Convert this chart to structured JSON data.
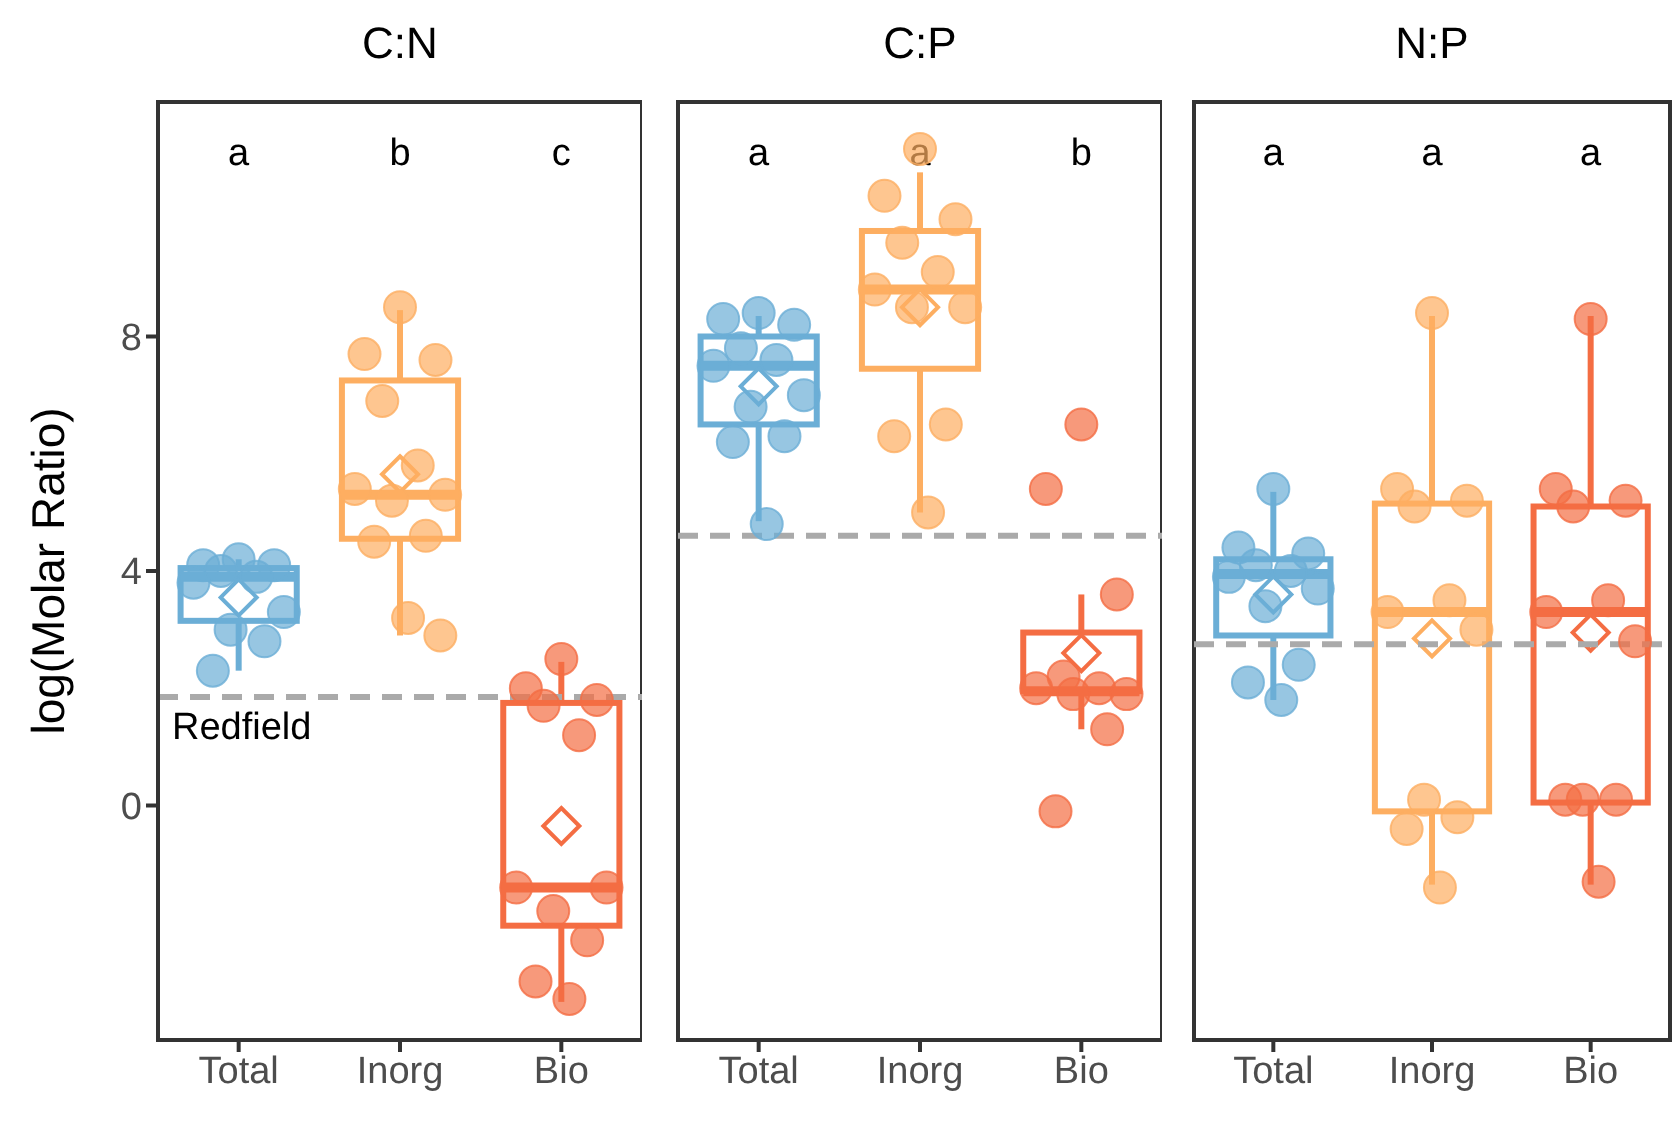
{
  "chart_data": [
    {
      "type": "box",
      "title": "C:N",
      "ylabel": "log(Molar Ratio)",
      "categories": [
        "Total",
        "Inorg",
        "Bio"
      ],
      "ylim": [
        -4,
        12
      ],
      "yticks": [
        0,
        4,
        8
      ],
      "marker": "circle",
      "series": [
        {
          "type": "box",
          "colors": [
            "#6baed6",
            "#fdae61",
            "#f46d43"
          ],
          "boxes": [
            {
              "low": 2.3,
              "q1": 3.15,
              "median": 3.9,
              "q3": 4.05,
              "high": 4.2,
              "mean": 3.55
            },
            {
              "low": 2.9,
              "q1": 4.55,
              "median": 5.3,
              "q3": 7.25,
              "high": 8.45,
              "mean": 5.65
            },
            {
              "low": -3.35,
              "q1": -2.05,
              "median": -1.4,
              "q3": 1.75,
              "high": 2.45,
              "mean": -0.35
            }
          ]
        },
        {
          "type": "scatter",
          "color": "#6baed6",
          "x": [
            "Total",
            "Total",
            "Total",
            "Total",
            "Total",
            "Total",
            "Total",
            "Total",
            "Total",
            "Total"
          ],
          "values": [
            4.2,
            4.1,
            4.1,
            4.0,
            3.9,
            3.8,
            3.3,
            3.0,
            2.8,
            2.3
          ]
        },
        {
          "type": "scatter",
          "color": "#fdae61",
          "x": [
            "Inorg",
            "Inorg",
            "Inorg",
            "Inorg",
            "Inorg",
            "Inorg",
            "Inorg",
            "Inorg",
            "Inorg",
            "Inorg",
            "Inorg",
            "Inorg"
          ],
          "values": [
            8.5,
            7.7,
            7.6,
            6.9,
            5.8,
            5.4,
            5.3,
            5.2,
            4.6,
            4.5,
            3.2,
            2.9
          ]
        },
        {
          "type": "scatter",
          "color": "#f46d43",
          "x": [
            "Bio",
            "Bio",
            "Bio",
            "Bio",
            "Bio",
            "Bio",
            "Bio",
            "Bio",
            "Bio",
            "Bio",
            "Bio"
          ],
          "values": [
            2.5,
            2.0,
            1.8,
            1.7,
            1.2,
            -1.4,
            -1.4,
            -1.8,
            -2.3,
            -3.0,
            -3.3
          ]
        }
      ],
      "ref_lines": [
        {
          "axis": "y",
          "value": 1.85,
          "label": "Redfield",
          "color": "#aaaaaa",
          "line_style": "dashed"
        }
      ],
      "annotations": [
        "a",
        "b",
        "c"
      ]
    },
    {
      "type": "box",
      "title": "C:P",
      "categories": [
        "Total",
        "Inorg",
        "Bio"
      ],
      "ylim": [
        -4,
        12
      ],
      "yticks": [
        0,
        4,
        8
      ],
      "tick_labels": "x",
      "marker": "circle",
      "series": [
        {
          "type": "box",
          "colors": [
            "#6baed6",
            "#fdae61",
            "#f46d43"
          ],
          "boxes": [
            {
              "low": 4.85,
              "q1": 6.5,
              "median": 7.5,
              "q3": 8.0,
              "high": 8.35,
              "mean": 7.15
            },
            {
              "low": 5.0,
              "q1": 7.45,
              "median": 8.8,
              "q3": 9.8,
              "high": 10.8,
              "mean": 8.5
            },
            {
              "low": 1.3,
              "q1": 1.95,
              "median": 1.95,
              "q3": 2.95,
              "high": 3.6,
              "mean": 2.6
            }
          ]
        },
        {
          "type": "scatter",
          "color": "#6baed6",
          "x": [
            "Total",
            "Total",
            "Total",
            "Total",
            "Total",
            "Total",
            "Total",
            "Total",
            "Total",
            "Total",
            "Total"
          ],
          "values": [
            8.4,
            8.3,
            8.2,
            7.8,
            7.6,
            7.5,
            7.0,
            6.8,
            6.3,
            6.2,
            4.8
          ]
        },
        {
          "type": "scatter",
          "color": "#fdae61",
          "x": [
            "Inorg",
            "Inorg",
            "Inorg",
            "Inorg",
            "Inorg",
            "Inorg",
            "Inorg",
            "Inorg",
            "Inorg",
            "Inorg",
            "Inorg"
          ],
          "values": [
            11.2,
            10.4,
            10.0,
            9.6,
            9.1,
            8.8,
            8.5,
            8.5,
            6.5,
            6.3,
            5.0
          ]
        },
        {
          "type": "scatter",
          "color": "#f46d43",
          "x": [
            "Bio",
            "Bio",
            "Bio",
            "Bio",
            "Bio",
            "Bio",
            "Bio",
            "Bio",
            "Bio",
            "Bio"
          ],
          "values": [
            6.5,
            5.4,
            3.6,
            2.2,
            2.0,
            2.0,
            1.9,
            1.9,
            1.3,
            -0.1
          ]
        }
      ],
      "ref_lines": [
        {
          "axis": "y",
          "value": 4.6,
          "color": "#aaaaaa",
          "line_style": "dashed"
        }
      ],
      "annotations": [
        "a",
        "a",
        "b"
      ]
    },
    {
      "type": "box",
      "title": "N:P",
      "categories": [
        "Total",
        "Inorg",
        "Bio"
      ],
      "ylim": [
        -4,
        12
      ],
      "yticks": [
        0,
        4,
        8
      ],
      "tick_labels": "x",
      "marker": "circle",
      "series": [
        {
          "type": "box",
          "colors": [
            "#6baed6",
            "#fdae61",
            "#f46d43"
          ],
          "boxes": [
            {
              "low": 1.8,
              "q1": 2.9,
              "median": 3.95,
              "q3": 4.2,
              "high": 5.35,
              "mean": 3.6
            },
            {
              "low": -1.35,
              "q1": -0.1,
              "median": 3.3,
              "q3": 5.15,
              "high": 8.35,
              "mean": 2.85
            },
            {
              "low": -1.35,
              "q1": 0.05,
              "median": 3.3,
              "q3": 5.1,
              "high": 8.35,
              "mean": 2.95
            }
          ]
        },
        {
          "type": "scatter",
          "color": "#6baed6",
          "x": [
            "Total",
            "Total",
            "Total",
            "Total",
            "Total",
            "Total",
            "Total",
            "Total",
            "Total",
            "Total",
            "Total"
          ],
          "values": [
            5.4,
            4.4,
            4.3,
            4.1,
            4.0,
            3.9,
            3.7,
            3.4,
            2.4,
            2.1,
            1.8
          ]
        },
        {
          "type": "scatter",
          "color": "#fdae61",
          "x": [
            "Inorg",
            "Inorg",
            "Inorg",
            "Inorg",
            "Inorg",
            "Inorg",
            "Inorg",
            "Inorg",
            "Inorg",
            "Inorg",
            "Inorg"
          ],
          "values": [
            8.4,
            5.4,
            5.2,
            5.1,
            3.5,
            3.3,
            3.0,
            0.1,
            -0.2,
            -0.4,
            -1.4
          ]
        },
        {
          "type": "scatter",
          "color": "#f46d43",
          "x": [
            "Bio",
            "Bio",
            "Bio",
            "Bio",
            "Bio",
            "Bio",
            "Bio",
            "Bio",
            "Bio",
            "Bio",
            "Bio"
          ],
          "values": [
            8.3,
            5.4,
            5.2,
            5.1,
            3.5,
            3.3,
            2.8,
            0.1,
            0.1,
            0.1,
            -1.3
          ]
        }
      ],
      "ref_lines": [
        {
          "axis": "y",
          "value": 2.75,
          "color": "#aaaaaa",
          "line_style": "dashed"
        }
      ],
      "annotations": [
        "a",
        "a",
        "a"
      ]
    }
  ]
}
